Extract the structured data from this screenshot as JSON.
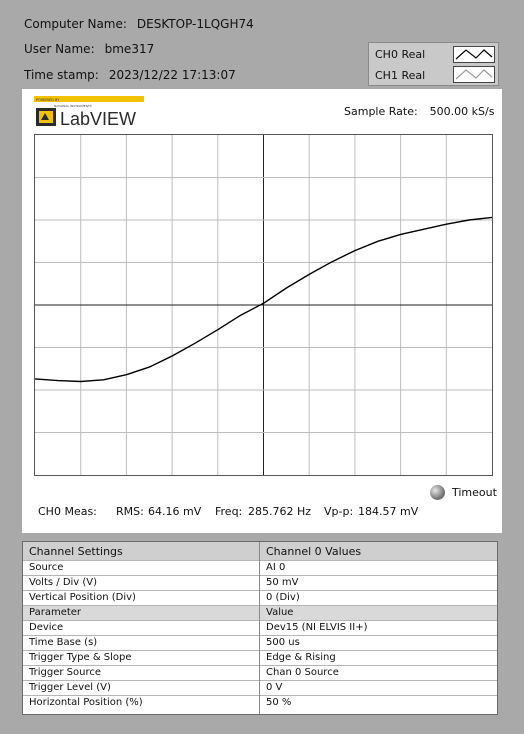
{
  "header": {
    "computer_name_label": "Computer Name:",
    "computer_name": "DESKTOP-1LQGH74",
    "user_name_label": "User Name:",
    "user_name": "bme317",
    "timestamp_label": "Time stamp:",
    "timestamp": "2023/12/22 17:13:07"
  },
  "legend": {
    "items": [
      {
        "label": "CH0 Real",
        "color": "#000000"
      },
      {
        "label": "CH1 Real",
        "color": "#9a9a9a"
      }
    ]
  },
  "logo": {
    "text": "LabVIEW",
    "top_text": "POWERED BY",
    "sub_text": "NATIONAL INSTRUMENTS"
  },
  "sample_rate": {
    "label": "Sample Rate:",
    "value": "500.00 kS/s"
  },
  "timeout": {
    "label": "Timeout"
  },
  "measurements": {
    "label": "CH0 Meas:",
    "rms_label": "RMS:",
    "rms_value": "64.16 mV",
    "freq_label": "Freq:",
    "freq_value": "285.762 Hz",
    "vpp_label": "Vp-p:",
    "vpp_value": "184.57 mV"
  },
  "chart_data": {
    "type": "line",
    "grid": true,
    "divisions_x": 10,
    "divisions_y": 8,
    "xlim": [
      0,
      5000
    ],
    "ylim": [
      -200,
      200
    ],
    "series": [
      {
        "name": "CH0 Real",
        "color": "#000000",
        "x": [
          0,
          250,
          500,
          750,
          1000,
          1250,
          1500,
          1750,
          2000,
          2250,
          2500,
          2750,
          3000,
          3250,
          3500,
          3750,
          4000,
          4250,
          4500,
          4750,
          5000
        ],
        "y": [
          -87,
          -89,
          -90,
          -88,
          -82,
          -73,
          -60,
          -45,
          -29,
          -12,
          2,
          20,
          36,
          51,
          64,
          75,
          83,
          89,
          95,
          100,
          103
        ]
      }
    ]
  },
  "table": {
    "head": [
      "Channel Settings",
      "Channel 0 Values"
    ],
    "rows": [
      [
        "Source",
        "AI 0"
      ],
      [
        "Volts / Div (V)",
        "50 mV"
      ],
      [
        "Vertical Position (Div)",
        "0 (Div)"
      ]
    ],
    "subhead": [
      "Parameter",
      "Value"
    ],
    "rows2": [
      [
        "Device",
        "Dev15 (NI ELVIS II+)"
      ],
      [
        "Time Base (s)",
        "500 us"
      ],
      [
        "Trigger Type & Slope",
        "Edge & Rising"
      ],
      [
        "Trigger Source",
        "Chan 0 Source"
      ],
      [
        "Trigger Level (V)",
        "0 V"
      ],
      [
        "Horizontal Position (%)",
        "50 %"
      ]
    ]
  }
}
